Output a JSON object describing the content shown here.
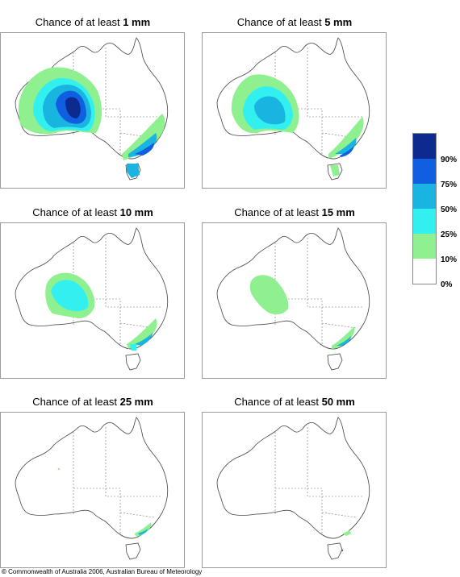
{
  "title_prefix": "Chance of at least",
  "panels": [
    {
      "amount": "1 mm"
    },
    {
      "amount": "5 mm"
    },
    {
      "amount": "10 mm"
    },
    {
      "amount": "15 mm"
    },
    {
      "amount": "25 mm"
    },
    {
      "amount": "50 mm"
    }
  ],
  "legend": {
    "colors": [
      "#0d2a8f",
      "#0f5fe0",
      "#19b4e0",
      "#33f0f0",
      "#8ef08e",
      "#ffffff"
    ],
    "labels": [
      "90%",
      "75%",
      "50%",
      "25%",
      "10%",
      "0%"
    ]
  },
  "copyright": {
    "symbol": "©",
    "text": "Commonwealth of Australia 2006, Australian Bureau of Meteorology"
  }
}
